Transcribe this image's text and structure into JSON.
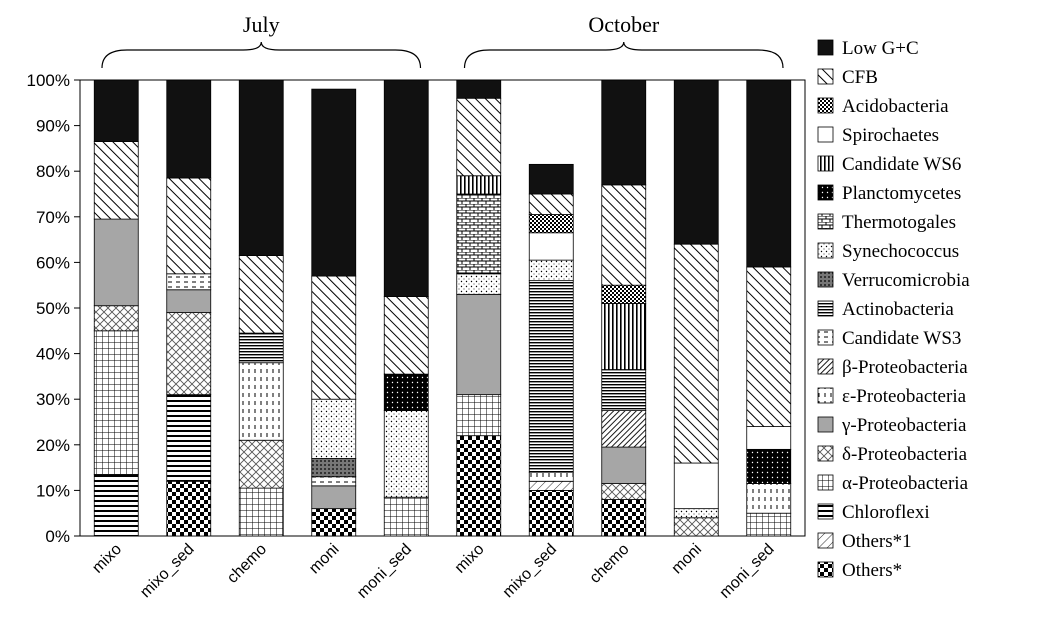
{
  "chart_data": {
    "type": "bar",
    "stacked": true,
    "groups": [
      {
        "label": "July",
        "categories": [
          "mixo",
          "mixo_sed",
          "chemo",
          "moni",
          "moni_sed"
        ]
      },
      {
        "label": "October",
        "categories": [
          "mixo",
          "mixo_sed",
          "chemo",
          "moni",
          "moni_sed"
        ]
      }
    ],
    "categories": [
      "mixo",
      "mixo_sed",
      "chemo",
      "moni",
      "moni_sed",
      "mixo",
      "mixo_sed",
      "chemo",
      "moni",
      "moni_sed"
    ],
    "ylim": [
      0,
      100
    ],
    "yticks": [
      "0%",
      "10%",
      "20%",
      "30%",
      "40%",
      "50%",
      "60%",
      "70%",
      "80%",
      "90%",
      "100%"
    ],
    "legend_position": "right",
    "series": [
      {
        "name": "Others*",
        "pattern": "checker",
        "values": [
          0,
          12,
          0,
          6,
          0,
          22,
          10,
          8,
          0,
          0
        ]
      },
      {
        "name": "Others*1",
        "pattern": "diag-thin",
        "values": [
          0,
          0,
          0,
          0,
          0,
          0,
          2,
          0,
          0,
          0
        ]
      },
      {
        "name": "Chloroflexi",
        "pattern": "hlines",
        "values": [
          13.5,
          19,
          0,
          0,
          0,
          0,
          0,
          0,
          0,
          0
        ]
      },
      {
        "name": "α-Proteobacteria",
        "pattern": "grid",
        "values": [
          31.5,
          0,
          10.5,
          0,
          8.5,
          9,
          0,
          0,
          0,
          5
        ]
      },
      {
        "name": "δ-Proteobacteria",
        "pattern": "crosshatch",
        "values": [
          5.5,
          18,
          10.5,
          0,
          0,
          0,
          0,
          3.5,
          4,
          0
        ]
      },
      {
        "name": "γ-Proteobacteria",
        "pattern": "gray",
        "values": [
          19,
          5,
          0,
          5,
          0,
          22,
          0,
          8,
          0,
          0
        ]
      },
      {
        "name": "ε-Proteobacteria",
        "pattern": "vdash",
        "values": [
          0,
          0,
          17,
          0,
          0,
          0,
          2,
          0,
          0,
          6.5
        ]
      },
      {
        "name": "β-Proteobacteria",
        "pattern": "diag-dense",
        "values": [
          0,
          0,
          0,
          0,
          0,
          0,
          0,
          8,
          0,
          0
        ]
      },
      {
        "name": "Candidate WS3",
        "pattern": "dashed-h",
        "values": [
          0,
          3.5,
          0,
          2,
          0,
          0,
          0,
          0,
          0,
          0
        ]
      },
      {
        "name": "Actinobacteria",
        "pattern": "hlines-dense",
        "values": [
          0,
          0,
          6.5,
          0,
          0,
          0,
          42,
          9,
          0,
          0
        ]
      },
      {
        "name": "Verrucomicrobia",
        "pattern": "dark-dots",
        "values": [
          0,
          0,
          0,
          4,
          0,
          0,
          0,
          0,
          0,
          0
        ]
      },
      {
        "name": "Synechococcus",
        "pattern": "dots",
        "values": [
          0,
          0,
          0,
          13,
          19,
          4.5,
          4.5,
          0,
          2,
          0
        ]
      },
      {
        "name": "Thermotogales",
        "pattern": "brick",
        "values": [
          0,
          0,
          0,
          0,
          0,
          17.5,
          0,
          0,
          0,
          0
        ]
      },
      {
        "name": "Planctomycetes",
        "pattern": "black-dots",
        "values": [
          0,
          0,
          0,
          0,
          8,
          0,
          0,
          0,
          0,
          7.5
        ]
      },
      {
        "name": "Candidate WS6",
        "pattern": "vlines",
        "values": [
          0,
          0,
          0,
          0,
          0,
          4,
          0,
          14.5,
          0,
          0
        ]
      },
      {
        "name": "Spirochaetes",
        "pattern": "white",
        "values": [
          0,
          0,
          0,
          0,
          0,
          0,
          6,
          0,
          10,
          5
        ]
      },
      {
        "name": "Acidobacteria",
        "pattern": "fine-check",
        "values": [
          0,
          0,
          0,
          0,
          0,
          0,
          4,
          4,
          0,
          0
        ]
      },
      {
        "name": "CFB",
        "pattern": "diag",
        "values": [
          17,
          21,
          17,
          27,
          17,
          17,
          4.5,
          22,
          48,
          35
        ]
      },
      {
        "name": "Low G+C",
        "pattern": "black",
        "values": [
          13.5,
          21.5,
          38.5,
          41,
          47.5,
          4,
          6.5,
          23,
          36,
          41
        ]
      }
    ]
  }
}
